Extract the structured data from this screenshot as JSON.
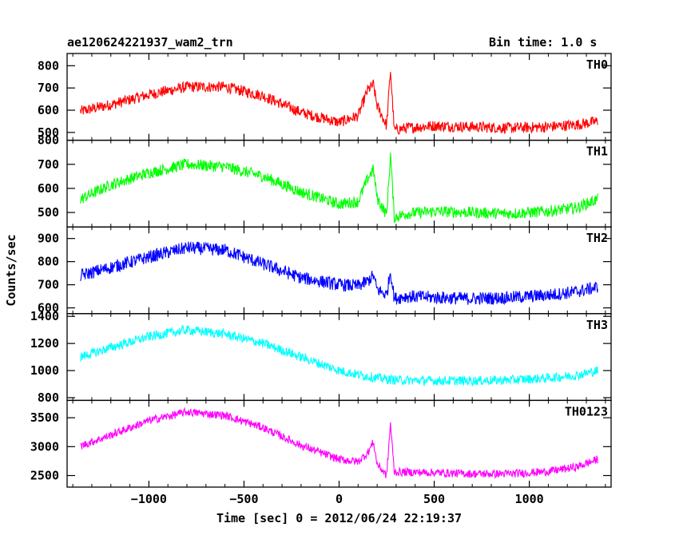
{
  "header": {
    "left_title": "ae120624221937_wam2_trn",
    "right_title": "Bin time: 1.0 s"
  },
  "chart_data": {
    "type": "line",
    "title": "ae120624221937_wam2_trn",
    "subtitle": "Bin time: 1.0 s",
    "xlabel": "Time [sec] 0 = 2012/06/24 22:19:37",
    "ylabel": "Counts/sec",
    "xlim": [
      -1430,
      1430
    ],
    "x_ticks": [
      -1000,
      -500,
      0,
      500,
      1000
    ],
    "x_tick_labels": [
      "−1000",
      "−500",
      "0",
      "500",
      "1000"
    ],
    "grid": false,
    "panels": [
      {
        "name": "TH0",
        "color": "#ff0000",
        "ylim": [
          465,
          855
        ],
        "y_ticks": [
          500,
          600,
          700,
          800
        ],
        "x": [
          -1360,
          -1200,
          -1000,
          -800,
          -600,
          -400,
          -200,
          0,
          100,
          150,
          180,
          200,
          250,
          270,
          290,
          350,
          500,
          700,
          900,
          1100,
          1250,
          1360
        ],
        "y": [
          595,
          625,
          670,
          705,
          705,
          665,
          590,
          545,
          575,
          690,
          715,
          620,
          530,
          780,
          510,
          520,
          530,
          525,
          520,
          525,
          535,
          550
        ],
        "noise": 25
      },
      {
        "name": "TH1",
        "color": "#00ff00",
        "ylim": [
          440,
          800
        ],
        "y_ticks": [
          500,
          600,
          700,
          800
        ],
        "x": [
          -1360,
          -1200,
          -1000,
          -800,
          -600,
          -400,
          -200,
          0,
          100,
          150,
          180,
          200,
          250,
          270,
          290,
          350,
          500,
          700,
          900,
          1100,
          1250,
          1360
        ],
        "y": [
          555,
          615,
          665,
          700,
          690,
          650,
          585,
          535,
          545,
          640,
          680,
          560,
          490,
          740,
          480,
          495,
          505,
          500,
          495,
          505,
          520,
          555
        ],
        "noise": 24
      },
      {
        "name": "TH2",
        "color": "#0000ff",
        "ylim": [
          575,
          950
        ],
        "y_ticks": [
          600,
          700,
          800,
          900
        ],
        "x": [
          -1360,
          -1200,
          -1000,
          -800,
          -600,
          -400,
          -200,
          0,
          100,
          150,
          180,
          200,
          250,
          270,
          290,
          350,
          500,
          700,
          900,
          1100,
          1250,
          1360
        ],
        "y": [
          740,
          775,
          820,
          860,
          850,
          790,
          730,
          700,
          695,
          715,
          740,
          680,
          655,
          760,
          640,
          650,
          645,
          640,
          645,
          655,
          670,
          690
        ],
        "noise": 28
      },
      {
        "name": "TH3",
        "color": "#00ffff",
        "ylim": [
          780,
          1420
        ],
        "y_ticks": [
          800,
          1000,
          1200,
          1400
        ],
        "x": [
          -1360,
          -1200,
          -1000,
          -800,
          -600,
          -400,
          -200,
          0,
          100,
          200,
          300,
          500,
          700,
          900,
          1100,
          1250,
          1360
        ],
        "y": [
          1100,
          1170,
          1250,
          1300,
          1270,
          1200,
          1100,
          1000,
          970,
          945,
          930,
          925,
          925,
          930,
          945,
          965,
          1000
        ],
        "noise": 35
      },
      {
        "name": "TH0123",
        "color": "#ff00ff",
        "ylim": [
          2300,
          3800
        ],
        "y_ticks": [
          2500,
          3000,
          3500
        ],
        "x": [
          -1360,
          -1200,
          -1000,
          -800,
          -600,
          -400,
          -200,
          0,
          100,
          150,
          180,
          200,
          250,
          270,
          290,
          350,
          500,
          700,
          900,
          1100,
          1250,
          1360
        ],
        "y": [
          3010,
          3200,
          3450,
          3600,
          3540,
          3330,
          3020,
          2780,
          2740,
          2890,
          3080,
          2700,
          2500,
          3400,
          2560,
          2560,
          2550,
          2530,
          2530,
          2570,
          2650,
          2780
        ],
        "noise": 70
      }
    ]
  }
}
